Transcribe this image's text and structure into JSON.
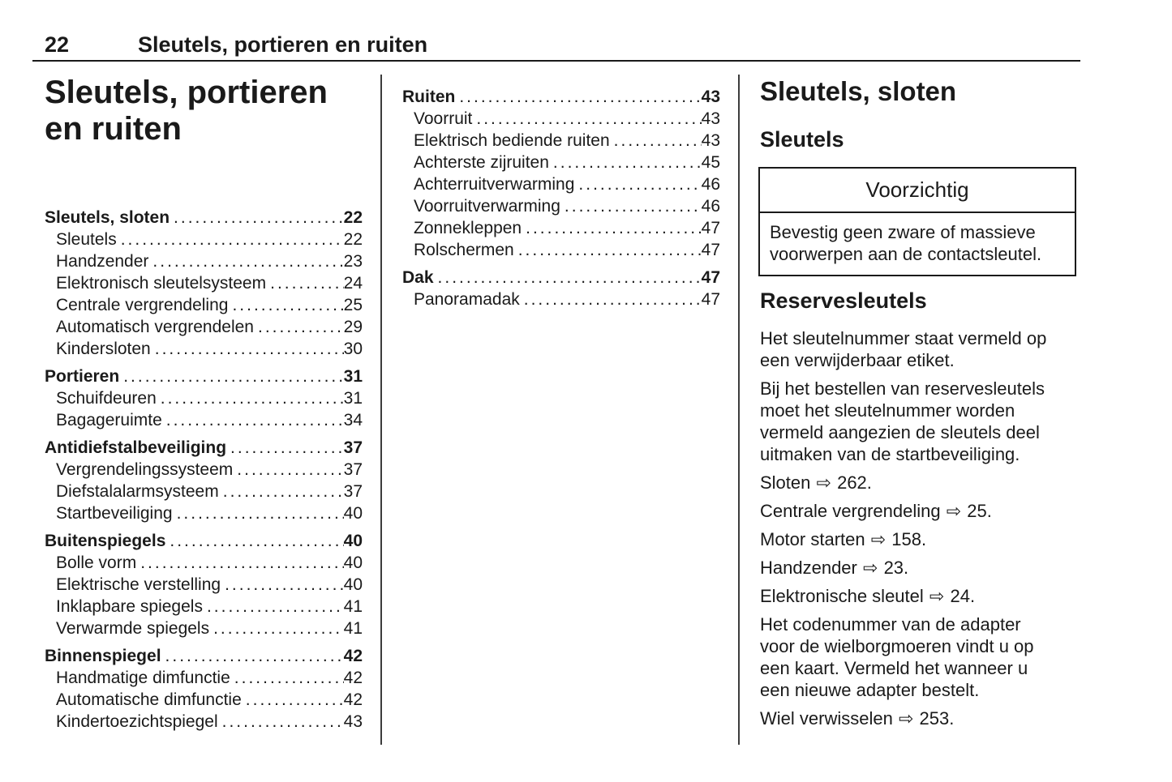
{
  "header": {
    "page_number": "22",
    "chapter_title": "Sleutels, portieren en ruiten"
  },
  "toc_leader_dot": ".",
  "left_column": {
    "title": "Sleutels, portieren en ruiten",
    "toc": [
      {
        "label": "Sleutels, sloten",
        "page": "22",
        "bold": true
      },
      {
        "label": "Sleutels",
        "page": "22",
        "indent": true
      },
      {
        "label": "Handzender",
        "page": "23",
        "indent": true
      },
      {
        "label": "Elektronisch sleutelsysteem",
        "page": "24",
        "indent": true
      },
      {
        "label": "Centrale vergrendeling",
        "page": "25",
        "indent": true
      },
      {
        "label": "Automatisch vergrendelen",
        "page": "29",
        "indent": true
      },
      {
        "label": "Kindersloten",
        "page": "30",
        "indent": true
      },
      {
        "label": "Portieren",
        "page": "31",
        "bold": true,
        "gap": true
      },
      {
        "label": "Schuifdeuren",
        "page": "31",
        "indent": true
      },
      {
        "label": "Bagageruimte",
        "page": "34",
        "indent": true
      },
      {
        "label": "Antidiefstalbeveiliging",
        "page": "37",
        "bold": true,
        "gap": true
      },
      {
        "label": "Vergrendelingssysteem",
        "page": "37",
        "indent": true
      },
      {
        "label": "Diefstalalarmsysteem",
        "page": "37",
        "indent": true
      },
      {
        "label": "Startbeveiliging",
        "page": "40",
        "indent": true
      },
      {
        "label": "Buitenspiegels",
        "page": "40",
        "bold": true,
        "gap": true
      },
      {
        "label": "Bolle vorm",
        "page": "40",
        "indent": true
      },
      {
        "label": "Elektrische verstelling",
        "page": "40",
        "indent": true
      },
      {
        "label": "Inklapbare spiegels",
        "page": "41",
        "indent": true
      },
      {
        "label": "Verwarmde spiegels",
        "page": "41",
        "indent": true
      },
      {
        "label": "Binnenspiegel",
        "page": "42",
        "bold": true,
        "gap": true
      },
      {
        "label": "Handmatige dimfunctie",
        "page": "42",
        "indent": true
      },
      {
        "label": "Automatische dimfunctie",
        "page": "42",
        "indent": true
      },
      {
        "label": "Kindertoezichtspiegel",
        "page": "43",
        "indent": true
      }
    ]
  },
  "middle_column": {
    "toc": [
      {
        "label": "Ruiten",
        "page": "43",
        "bold": true
      },
      {
        "label": "Voorruit",
        "page": "43",
        "indent": true
      },
      {
        "label": "Elektrisch bediende ruiten",
        "page": "43",
        "indent": true
      },
      {
        "label": "Achterste zijruiten",
        "page": "45",
        "indent": true
      },
      {
        "label": "Achterruitverwarming",
        "page": "46",
        "indent": true
      },
      {
        "label": "Voorruitverwarming",
        "page": "46",
        "indent": true
      },
      {
        "label": "Zonnekleppen",
        "page": "47",
        "indent": true
      },
      {
        "label": "Rolschermen",
        "page": "47",
        "indent": true
      },
      {
        "label": "Dak",
        "page": "47",
        "bold": true,
        "gap": true
      },
      {
        "label": "Panoramadak",
        "page": "47",
        "indent": true
      }
    ]
  },
  "right_column": {
    "section_heading": "Sleutels, sloten",
    "subsection_heading": "Sleutels",
    "caution_box": {
      "title": "Voorzichtig",
      "lines": [
        "Bevestig geen zware of massieve",
        "voorwerpen aan de contactsleutel."
      ]
    },
    "reserve_heading": "Reservesleutels",
    "blocks": [
      {
        "type": "text",
        "lines": [
          "Het sleutelnummer staat vermeld op",
          "een verwijderbaar etiket."
        ]
      },
      {
        "type": "text",
        "lines": [
          "Bij het bestellen van reservesleutels",
          "moet het sleutelnummer worden",
          "vermeld aangezien de sleutels deel",
          "uitmaken van de startbeveiliging."
        ]
      },
      {
        "type": "ref",
        "label": "Sloten",
        "arrow": "⇨",
        "page": "262."
      },
      {
        "type": "ref",
        "label": "Centrale vergrendeling",
        "arrow": "⇨",
        "page": "25."
      },
      {
        "type": "ref",
        "label": "Motor starten",
        "arrow": "⇨",
        "page": "158."
      },
      {
        "type": "ref",
        "label": "Handzender",
        "arrow": "⇨",
        "page": "23."
      },
      {
        "type": "ref",
        "label": "Elektronische sleutel",
        "arrow": "⇨",
        "page": "24."
      },
      {
        "type": "text",
        "lines": [
          "Het codenummer van de adapter",
          "voor de wielborgmoeren vindt u op",
          "een kaart. Vermeld het wanneer u",
          "een nieuwe adapter bestelt."
        ]
      },
      {
        "type": "ref",
        "label": "Wiel verwisselen",
        "arrow": "⇨",
        "page": "253."
      }
    ]
  },
  "colors": {
    "text": "#1a1a1a",
    "rule": "#1a1a1a",
    "divider": "#3c3c3c",
    "background": "#ffffff"
  }
}
